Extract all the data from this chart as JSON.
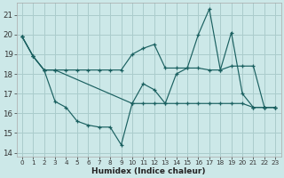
{
  "xlabel": "Humidex (Indice chaleur)",
  "bg_color": "#cce8e8",
  "grid_color": "#aacccc",
  "line_color": "#1a6060",
  "xlim": [
    -0.5,
    23.5
  ],
  "ylim": [
    13.8,
    21.6
  ],
  "yticks": [
    14,
    15,
    16,
    17,
    18,
    19,
    20,
    21
  ],
  "xticks": [
    0,
    1,
    2,
    3,
    4,
    5,
    6,
    7,
    8,
    9,
    10,
    11,
    12,
    13,
    14,
    15,
    16,
    17,
    18,
    19,
    20,
    21,
    22,
    23
  ],
  "line1_x": [
    0,
    1,
    2,
    3,
    4,
    5,
    6,
    7,
    8,
    9,
    10,
    11,
    12,
    13,
    14,
    15,
    16,
    17,
    18,
    19,
    20,
    21,
    22,
    23
  ],
  "line1_y": [
    19.9,
    18.9,
    18.2,
    18.2,
    18.2,
    18.2,
    18.2,
    18.2,
    18.2,
    18.2,
    19.0,
    19.3,
    19.5,
    18.3,
    18.3,
    18.3,
    18.3,
    18.2,
    18.2,
    18.4,
    18.4,
    18.4,
    16.3,
    16.3
  ],
  "line2_x": [
    0,
    1,
    2,
    3,
    10,
    11,
    12,
    13,
    14,
    15,
    16,
    17,
    18,
    19,
    20,
    21,
    22,
    23
  ],
  "line2_y": [
    19.9,
    18.9,
    18.2,
    18.2,
    16.5,
    16.5,
    16.5,
    16.5,
    16.5,
    16.5,
    16.5,
    16.5,
    16.5,
    16.5,
    16.5,
    16.3,
    16.3,
    16.3
  ],
  "line3_x": [
    0,
    1,
    2,
    3,
    4,
    5,
    6,
    7,
    8,
    9,
    10,
    11,
    12,
    13,
    14,
    15,
    16,
    17,
    18,
    19,
    20,
    21,
    22,
    23
  ],
  "line3_y": [
    19.9,
    18.9,
    18.2,
    16.6,
    16.3,
    15.6,
    15.4,
    15.3,
    15.3,
    14.4,
    16.5,
    17.5,
    17.2,
    16.5,
    18.0,
    18.3,
    20.0,
    21.3,
    18.2,
    20.1,
    17.0,
    16.3,
    16.3,
    16.3
  ]
}
